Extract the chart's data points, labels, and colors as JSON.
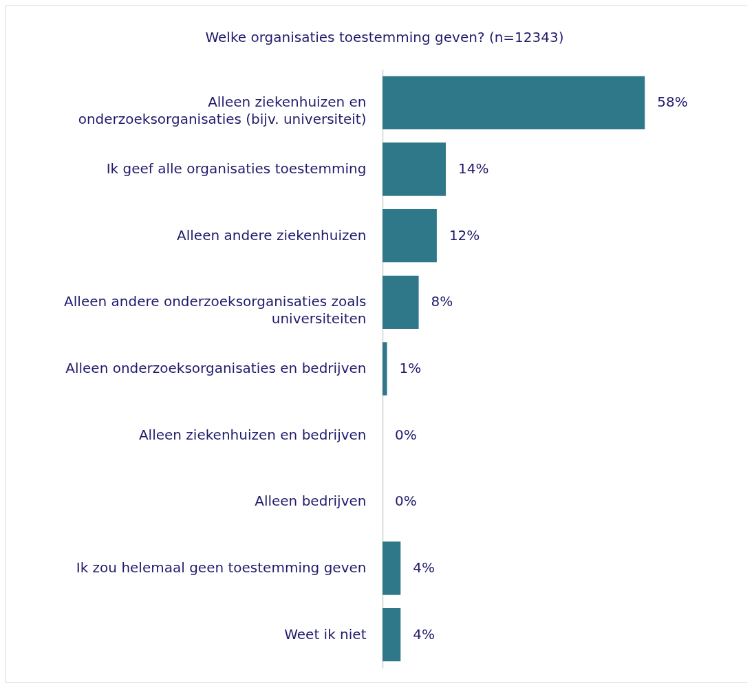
{
  "chart_data": {
    "type": "bar",
    "orientation": "horizontal",
    "title": "Welke organisaties toestemming geven? (n=12343)",
    "categories": [
      "Alleen ziekenhuizen en onderzoeksorganisaties (bijv. universiteit)",
      "Ik geef alle organisaties toestemming",
      "Alleen andere ziekenhuizen",
      "Alleen andere onderzoeksorganisaties zoals universiteiten",
      "Alleen onderzoeksorganisaties en bedrijven",
      "Alleen ziekenhuizen en bedrijven",
      "Alleen bedrijven",
      "Ik zou helemaal geen toestemming geven",
      "Weet ik niet"
    ],
    "values": [
      58,
      14,
      12,
      8,
      1,
      0,
      0,
      4,
      4
    ],
    "value_labels": [
      "58%",
      "14%",
      "12%",
      "8%",
      "1%",
      "0%",
      "0%",
      "4%",
      "4%"
    ],
    "color": "#2e7889"
  }
}
